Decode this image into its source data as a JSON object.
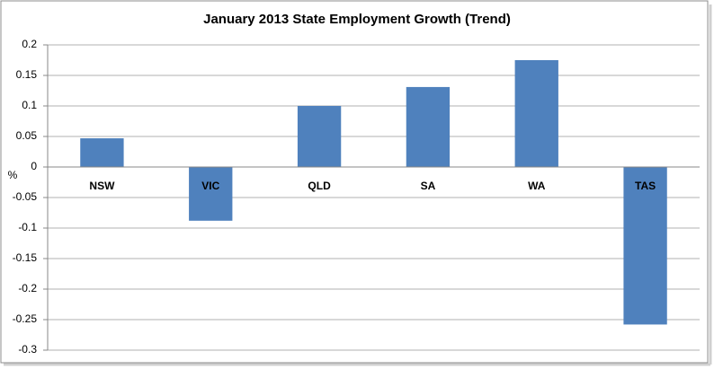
{
  "chart_data": {
    "type": "bar",
    "title": "January 2013 State Employment Growth (Trend)",
    "y_label": "%",
    "categories": [
      "NSW",
      "VIC",
      "QLD",
      "SA",
      "WA",
      "TAS"
    ],
    "values": [
      0.047,
      -0.088,
      0.1,
      0.131,
      0.175,
      -0.258
    ],
    "color": "#4f81bd",
    "ylim": [
      -0.3,
      0.2
    ],
    "yticks": [
      -0.3,
      -0.25,
      -0.2,
      -0.15,
      -0.1,
      -0.05,
      0,
      0.05,
      0.1,
      0.15,
      0.2
    ],
    "grid": true
  }
}
